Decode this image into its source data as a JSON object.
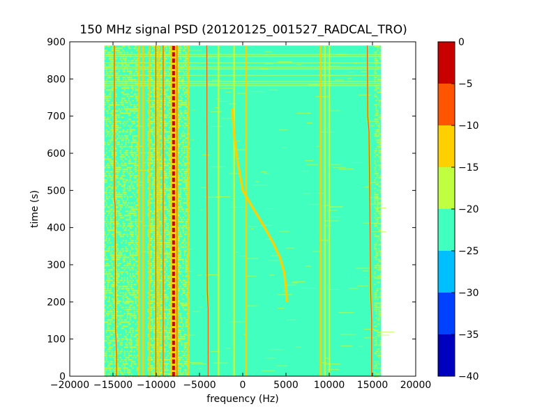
{
  "chart_data": {
    "type": "heatmap",
    "title": "150 MHz signal PSD (20120125_001527_RADCAL_TRO)",
    "xlabel": "frequency (Hz)",
    "ylabel": "time (s)",
    "xlim": [
      -20000,
      20000
    ],
    "ylim": [
      0,
      900
    ],
    "x_ticks": [
      -20000,
      -15000,
      -10000,
      -5000,
      0,
      5000,
      10000,
      15000,
      20000
    ],
    "y_ticks": [
      0,
      100,
      200,
      300,
      400,
      500,
      600,
      700,
      800,
      900
    ],
    "grid": false,
    "data_extent": {
      "x": [
        -16000,
        16000
      ],
      "y": [
        0,
        890
      ]
    },
    "background_level": -22.5,
    "colorbar": {
      "range": [
        -40,
        0
      ],
      "ticks": [
        0,
        -5,
        -10,
        -15,
        -20,
        -25,
        -30,
        -35,
        -40
      ],
      "bins": [
        {
          "range": [
            -40,
            -35
          ],
          "color": "#0000bf"
        },
        {
          "range": [
            -35,
            -30
          ],
          "color": "#0040ff"
        },
        {
          "range": [
            -30,
            -25
          ],
          "color": "#00bfff"
        },
        {
          "range": [
            -25,
            -20
          ],
          "color": "#40ffbf"
        },
        {
          "range": [
            -20,
            -15
          ],
          "color": "#bfff40"
        },
        {
          "range": [
            -15,
            -10
          ],
          "color": "#ffd000"
        },
        {
          "range": [
            -10,
            -5
          ],
          "color": "#ff5500"
        },
        {
          "range": [
            -5,
            0
          ],
          "color": "#c80000"
        }
      ]
    },
    "features": [
      {
        "type": "noisy_band",
        "x": [
          -16000,
          -12000
        ],
        "level": -17.5
      },
      {
        "type": "noisy_band",
        "x": [
          -11000,
          -6300
        ],
        "level": -17.5
      },
      {
        "type": "noisy_band",
        "x": [
          15200,
          16000
        ],
        "level": -17.5
      },
      {
        "type": "noisy_band_time",
        "y": [
          780,
          890
        ],
        "level": -17.5
      },
      {
        "type": "line",
        "x": -14800,
        "level": -7.5,
        "points": [
          [
            -14580,
            0
          ],
          [
            -14580,
            60
          ],
          [
            -14700,
            120
          ],
          [
            -14750,
            460
          ],
          [
            -14850,
            480
          ],
          [
            -14850,
            890
          ]
        ]
      },
      {
        "type": "line",
        "x": -12000,
        "level": -12.5,
        "points": [
          [
            -12000,
            0
          ],
          [
            -12000,
            890
          ]
        ]
      },
      {
        "type": "line",
        "x": -11500,
        "level": -12.5,
        "points": [
          [
            -11500,
            0
          ],
          [
            -11500,
            890
          ]
        ]
      },
      {
        "type": "line",
        "x": -10800,
        "level": -12.5,
        "points": [
          [
            -10800,
            0
          ],
          [
            -10800,
            890
          ]
        ]
      },
      {
        "type": "line",
        "x": -10050,
        "level": -7.5,
        "points": [
          [
            -10050,
            0
          ],
          [
            -10050,
            890
          ]
        ]
      },
      {
        "type": "line",
        "x": -9700,
        "level": -12.5,
        "points": [
          [
            -9700,
            0
          ],
          [
            -9700,
            890
          ]
        ]
      },
      {
        "type": "line",
        "x": -9200,
        "level": -7.5,
        "points": [
          [
            -9200,
            0
          ],
          [
            -9200,
            890
          ]
        ]
      },
      {
        "type": "line",
        "x": -8000,
        "level": -2.5,
        "points": [
          [
            -8000,
            0
          ],
          [
            -8000,
            890
          ]
        ]
      },
      {
        "type": "line",
        "x": -7600,
        "level": -7.5,
        "points": [
          [
            -7600,
            0
          ],
          [
            -7600,
            890
          ]
        ]
      },
      {
        "type": "line",
        "x": -6300,
        "level": -12.5,
        "points": [
          [
            -6300,
            0
          ],
          [
            -6300,
            890
          ]
        ]
      },
      {
        "type": "line",
        "x": -4000,
        "level": -7.5,
        "points": [
          [
            -4000,
            0
          ],
          [
            -4000,
            180
          ],
          [
            -4100,
            230
          ],
          [
            -4150,
            890
          ]
        ]
      },
      {
        "type": "line",
        "x": -2800,
        "level": -17.5,
        "points": [
          [
            -2800,
            0
          ],
          [
            -2800,
            890
          ]
        ]
      },
      {
        "type": "line",
        "x": -1000,
        "level": -17.5,
        "points": [
          [
            -1000,
            0
          ],
          [
            -1000,
            890
          ]
        ]
      },
      {
        "type": "line",
        "x": 400,
        "level": -12.5,
        "points": [
          [
            400,
            0
          ],
          [
            400,
            890
          ]
        ]
      },
      {
        "type": "line",
        "x": 9000,
        "level": -12.5,
        "points": [
          [
            9000,
            0
          ],
          [
            9000,
            890
          ]
        ]
      },
      {
        "type": "line",
        "x": 9500,
        "level": -17.5,
        "points": [
          [
            9500,
            0
          ],
          [
            9500,
            890
          ]
        ]
      },
      {
        "type": "line",
        "x": 10000,
        "level": -17.5,
        "points": [
          [
            10000,
            0
          ],
          [
            10000,
            890
          ]
        ]
      },
      {
        "type": "line",
        "x": 14700,
        "level": -7.5,
        "points": [
          [
            14900,
            0
          ],
          [
            14900,
            150
          ],
          [
            14800,
            220
          ],
          [
            14600,
            660
          ],
          [
            14450,
            700
          ],
          [
            14400,
            890
          ]
        ]
      },
      {
        "type": "chirp",
        "level": -12.5,
        "points": [
          [
            -1200,
            720
          ],
          [
            -1000,
            650
          ],
          [
            -600,
            580
          ],
          [
            0,
            500
          ],
          [
            1000,
            460
          ],
          [
            2300,
            410
          ],
          [
            3500,
            360
          ],
          [
            4300,
            320
          ],
          [
            4800,
            280
          ],
          [
            5000,
            240
          ],
          [
            5100,
            200
          ]
        ]
      }
    ]
  }
}
